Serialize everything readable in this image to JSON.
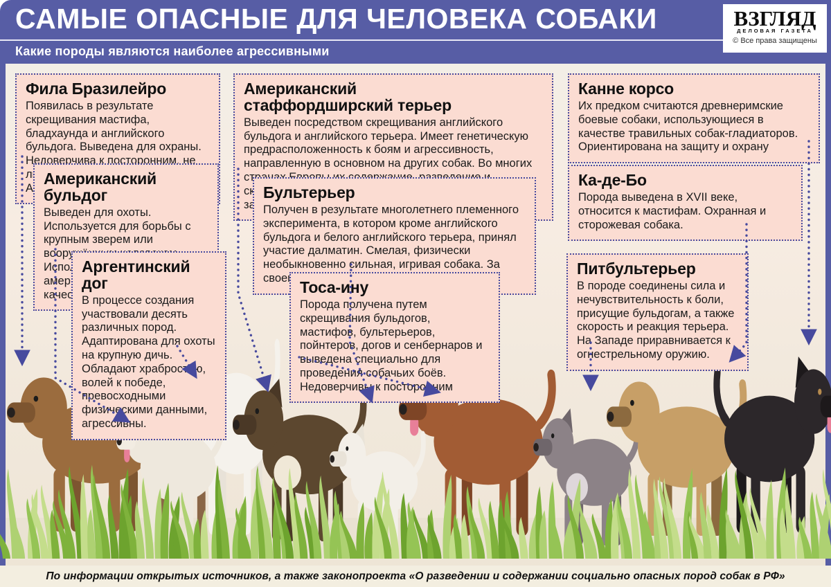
{
  "header": {
    "title": "САМЫЕ ОПАСНЫЕ ДЛЯ ЧЕЛОВЕКА СОБАКИ",
    "subtitle": "Какие породы являются наиболее агрессивными"
  },
  "logo": {
    "name": "ВЗГЛЯД",
    "tagline": "ДЕЛОВАЯ ГАЗЕТА",
    "copyright": "© Все права защищены"
  },
  "breeds": [
    {
      "id": "fila-brasileiro",
      "title": "Фила Бразилейро",
      "text": "Появилась в результате скрещивания мастифа, бладхаунда и английского бульдога. Выведена для охраны. Недоверчива к посторонним, не любит, когда ее трогают. Агрессивна."
    },
    {
      "id": "amstaff-terrier",
      "title": "Американский\nстаффордширский терьер",
      "text": "Выведен посредством скрещивания английского бульдога и английского терьера. Имеет генетическую предрасположенность к боям и агрессивность, направленную в основном на других собак. Во многих странах Европы их содержание, разведение и скрещивание с другими породами категорически запрещено."
    },
    {
      "id": "cane-corso",
      "title": "Канне корсо",
      "text": "Их предком считаются древнеримские боевые собаки, использующиеся в качестве травильных собак-гладиаторов. Ориентирована на защиту и охрану"
    },
    {
      "id": "american-bulldog",
      "title": "Американский бульдог",
      "text": "Выведен для охоты. Используется для борьбы с крупным зверем или вооружённым человеком. Использовался американскими колонистами в качестве охранной собаки."
    },
    {
      "id": "bull-terrier",
      "title": "Бультерьер",
      "text": "Получен в результате многолетнего племенного эксперимента, в котором кроме английского бульдога и белого английского терьера, принял участие далматин. Смелая, физически необыкновенно сильная, игривая собака. За своего хозяина будет сражаться насмерть."
    },
    {
      "id": "ca-de-bo",
      "title": "Ка-де-Бо",
      "text": "Порода выведена в XVII веке, относится к мастифам. Охранная и сторожевая собака."
    },
    {
      "id": "dogo-argentino",
      "title": "Аргентинский дог",
      "text": "В процессе создания участвовали десять различных пород. Адаптирована для охоты на крупную дичь. Обладают храбростью, волей к победе, превосходными физическими данными, агрессивны."
    },
    {
      "id": "tosa-inu",
      "title": "Тоса-ину",
      "text": "Порода получена путем скрещивания бульдогов, мастифов, бультерьеров, пойнтеров, догов и сенбернаров и выведена специально для проведения собачьих боёв. Недоверчивы к посторонним"
    },
    {
      "id": "pit-bull-terrier",
      "title": "Питбультерьер",
      "text": "В породе соединены сила и нечувствительность к боли, присущие бульдогам, а также скорость и реакция терьера. На Западе приравнивается к огнестрельному оружию."
    }
  ],
  "dogs": [
    {
      "id": "fila-brasileiro",
      "color": "#9b6c3e",
      "color2": "#7d5530"
    },
    {
      "id": "american-bulldog",
      "color": "#eee8dd",
      "color2": "#8a6647"
    },
    {
      "id": "dogo-argentino",
      "color": "#f5f2ec",
      "color2": "#e8e2d8"
    },
    {
      "id": "amstaff-terrier",
      "color": "#5c472f",
      "color2": "#4a3826"
    },
    {
      "id": "bull-terrier",
      "color": "#f3efe8",
      "color2": "#e9e3d8"
    },
    {
      "id": "tosa-inu",
      "color": "#a25c34",
      "color2": "#7e4526"
    },
    {
      "id": "pit-bull-terrier",
      "color": "#8c8287",
      "color2": "#6f666b"
    },
    {
      "id": "ca-de-bo",
      "color": "#c79f67",
      "color2": "#8c6a3f"
    },
    {
      "id": "cane-corso",
      "color": "#2c272a",
      "color2": "#1d191b"
    }
  ],
  "footer": {
    "source": "По информации открытых источников, а также законопроекта «О разведении и содержании социально опасных  пород собак в РФ»"
  },
  "colors": {
    "header_purple": "#575da5",
    "box_fill": "#fbdcd2",
    "box_border": "#474a9e",
    "arrow": "#474a9e",
    "background_cream": "#f2ede4",
    "grass_palette": [
      "#7fb23c",
      "#95c455",
      "#aed172",
      "#c4dd8b",
      "#6da32e"
    ],
    "soil_beige": "#eae2d2"
  }
}
